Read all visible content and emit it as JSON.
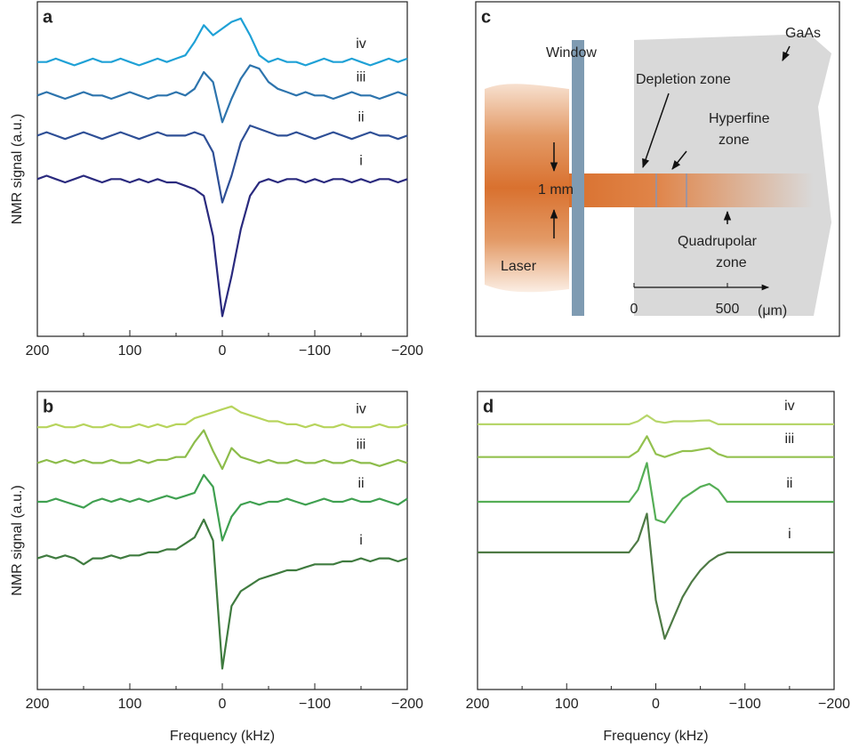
{
  "chart_data": [
    {
      "type": "line",
      "panel": "a",
      "ylabel": "NMR signal (a.u.)",
      "x": [
        200,
        190,
        180,
        170,
        160,
        150,
        140,
        130,
        120,
        110,
        100,
        90,
        80,
        70,
        60,
        50,
        40,
        30,
        20,
        10,
        0,
        -10,
        -20,
        -30,
        -40,
        -50,
        -60,
        -70,
        -80,
        -90,
        -100,
        -110,
        -120,
        -130,
        -140,
        -150,
        -160,
        -170,
        -180,
        -190,
        -200
      ],
      "xlim": [
        200,
        -200
      ],
      "xticks": [
        200,
        100,
        0,
        {
          "value": -100,
          "label": "−100"
        },
        {
          "value": -200,
          "label": "−200"
        }
      ],
      "minor_xticks": [
        150,
        50,
        -50,
        -150
      ],
      "ylim": [
        0,
        100
      ],
      "series": [
        {
          "name": "i",
          "color": "#2a2a7e",
          "values": [
            47,
            48,
            47,
            46,
            47,
            48,
            47,
            46,
            47,
            47,
            46,
            47,
            46,
            47,
            46,
            46,
            45,
            44,
            42,
            30,
            6,
            18,
            32,
            42,
            46,
            47,
            46,
            47,
            47,
            46,
            47,
            46,
            47,
            47,
            46,
            47,
            46,
            47,
            47,
            46,
            47
          ]
        },
        {
          "name": "ii",
          "color": "#2e4f96",
          "values": [
            60,
            61,
            60,
            59,
            60,
            61,
            60,
            59,
            60,
            61,
            60,
            59,
            60,
            61,
            60,
            60,
            60,
            61,
            60,
            55,
            40,
            48,
            58,
            63,
            62,
            61,
            60,
            60,
            61,
            60,
            59,
            60,
            61,
            60,
            59,
            60,
            61,
            60,
            60,
            59,
            60
          ]
        },
        {
          "name": "iii",
          "color": "#2d74ad",
          "values": [
            72,
            73,
            72,
            71,
            72,
            73,
            72,
            72,
            71,
            72,
            73,
            72,
            71,
            72,
            72,
            73,
            72,
            74,
            79,
            76,
            64,
            71,
            77,
            81,
            80,
            76,
            74,
            73,
            72,
            73,
            72,
            72,
            71,
            72,
            73,
            72,
            72,
            71,
            72,
            73,
            72
          ]
        },
        {
          "name": "iv",
          "color": "#1fa1d6",
          "values": [
            82,
            82,
            83,
            82,
            81,
            82,
            83,
            82,
            82,
            83,
            82,
            81,
            82,
            83,
            82,
            83,
            84,
            88,
            93,
            90,
            92,
            94,
            95,
            90,
            84,
            82,
            83,
            82,
            82,
            81,
            82,
            83,
            82,
            82,
            83,
            82,
            81,
            82,
            83,
            82,
            83
          ]
        }
      ]
    },
    {
      "type": "line",
      "panel": "b",
      "ylabel": "NMR signal (a.u.)",
      "xlabel": "Frequency (kHz)",
      "x": [
        200,
        190,
        180,
        170,
        160,
        150,
        140,
        130,
        120,
        110,
        100,
        90,
        80,
        70,
        60,
        50,
        40,
        30,
        20,
        10,
        0,
        -10,
        -20,
        -30,
        -40,
        -50,
        -60,
        -70,
        -80,
        -90,
        -100,
        -110,
        -120,
        -130,
        -140,
        -150,
        -160,
        -170,
        -180,
        -190,
        -200
      ],
      "xlim": [
        200,
        -200
      ],
      "xticks": [
        200,
        100,
        0,
        {
          "value": -100,
          "label": "−100"
        },
        {
          "value": -200,
          "label": "−200"
        }
      ],
      "minor_xticks": [
        150,
        50,
        -50,
        -150
      ],
      "ylim": [
        0,
        100
      ],
      "series": [
        {
          "name": "i",
          "color": "#3f7b3f",
          "values": [
            44,
            45,
            44,
            45,
            44,
            42,
            44,
            44,
            45,
            44,
            45,
            45,
            46,
            46,
            47,
            47,
            49,
            51,
            57,
            50,
            7,
            28,
            33,
            35,
            37,
            38,
            39,
            40,
            40,
            41,
            42,
            42,
            42,
            43,
            43,
            44,
            43,
            44,
            44,
            43,
            44
          ]
        },
        {
          "name": "ii",
          "color": "#3fa050",
          "values": [
            63,
            63,
            64,
            63,
            62,
            61,
            63,
            64,
            63,
            64,
            63,
            64,
            63,
            64,
            65,
            64,
            65,
            66,
            72,
            68,
            50,
            58,
            62,
            63,
            62,
            63,
            63,
            64,
            63,
            62,
            63,
            64,
            63,
            63,
            64,
            63,
            63,
            64,
            63,
            62,
            64
          ]
        },
        {
          "name": "iii",
          "color": "#8cbc4a",
          "values": [
            76,
            77,
            76,
            77,
            76,
            77,
            76,
            76,
            77,
            76,
            76,
            77,
            76,
            77,
            77,
            78,
            78,
            83,
            87,
            80,
            74,
            81,
            78,
            77,
            76,
            77,
            76,
            76,
            77,
            76,
            76,
            77,
            76,
            76,
            77,
            76,
            76,
            75,
            76,
            77,
            76
          ]
        },
        {
          "name": "iv",
          "color": "#b7d45c",
          "values": [
            88,
            88,
            89,
            88,
            88,
            89,
            88,
            88,
            89,
            88,
            88,
            89,
            88,
            89,
            88,
            89,
            89,
            91,
            92,
            93,
            94,
            95,
            93,
            92,
            91,
            90,
            90,
            89,
            89,
            88,
            89,
            88,
            88,
            89,
            88,
            88,
            88,
            89,
            88,
            88,
            89
          ]
        }
      ]
    },
    {
      "type": "line",
      "panel": "d",
      "xlabel": "Frequency (kHz)",
      "x": [
        200,
        190,
        180,
        170,
        160,
        150,
        140,
        130,
        120,
        110,
        100,
        90,
        80,
        70,
        60,
        50,
        40,
        30,
        20,
        10,
        0,
        -10,
        -20,
        -30,
        -40,
        -50,
        -60,
        -70,
        -80,
        -90,
        -100,
        -110,
        -120,
        -130,
        -140,
        -150,
        -160,
        -170,
        -180,
        -190,
        -200
      ],
      "xlim": [
        200,
        -200
      ],
      "xticks": [
        200,
        100,
        0,
        {
          "value": -100,
          "label": "−100"
        },
        {
          "value": -200,
          "label": "−200"
        }
      ],
      "minor_xticks": [
        150,
        50,
        -50,
        -150
      ],
      "ylim": [
        0,
        100
      ],
      "series": [
        {
          "name": "i",
          "color": "#4e7a45",
          "values": [
            46,
            46,
            46,
            46,
            46,
            46,
            46,
            46,
            46,
            46,
            46,
            46,
            46,
            46,
            46,
            46,
            46,
            46,
            50,
            59,
            30,
            17,
            24,
            31,
            36,
            40,
            43,
            45,
            46,
            46,
            46,
            46,
            46,
            46,
            46,
            46,
            46,
            46,
            46,
            46,
            46
          ]
        },
        {
          "name": "ii",
          "color": "#55ae56",
          "values": [
            63,
            63,
            63,
            63,
            63,
            63,
            63,
            63,
            63,
            63,
            63,
            63,
            63,
            63,
            63,
            63,
            63,
            63,
            67,
            76,
            57,
            56,
            60,
            64,
            66,
            68,
            69,
            67,
            63,
            63,
            63,
            63,
            63,
            63,
            63,
            63,
            63,
            63,
            63,
            63,
            63
          ]
        },
        {
          "name": "iii",
          "color": "#93c14f",
          "values": [
            78,
            78,
            78,
            78,
            78,
            78,
            78,
            78,
            78,
            78,
            78,
            78,
            78,
            78,
            78,
            78,
            78,
            78,
            80,
            85,
            79,
            78,
            79,
            80,
            80,
            80.5,
            81,
            79,
            78,
            78,
            78,
            78,
            78,
            78,
            78,
            78,
            78,
            78,
            78,
            78,
            78
          ]
        },
        {
          "name": "iv",
          "color": "#b7d66a",
          "values": [
            89,
            89,
            89,
            89,
            89,
            89,
            89,
            89,
            89,
            89,
            89,
            89,
            89,
            89,
            89,
            89,
            89,
            89,
            90,
            92,
            90,
            89.5,
            90,
            90,
            90,
            90.2,
            90.3,
            89,
            89,
            89,
            89,
            89,
            89,
            89,
            89,
            89,
            89,
            89,
            89,
            89,
            89
          ]
        }
      ]
    }
  ],
  "diagram": {
    "panel": "c",
    "window": "Window",
    "material": "GaAs",
    "depletion": "Depletion zone",
    "hyperfine": [
      "Hyperfine",
      "zone"
    ],
    "quadrupolar": [
      "Quadrupolar",
      "zone"
    ],
    "beam": "1 mm",
    "laser": "Laser",
    "scale": {
      "lim": [
        0,
        720
      ],
      "ticks": [
        0,
        500
      ],
      "unit": "(μm)"
    }
  }
}
